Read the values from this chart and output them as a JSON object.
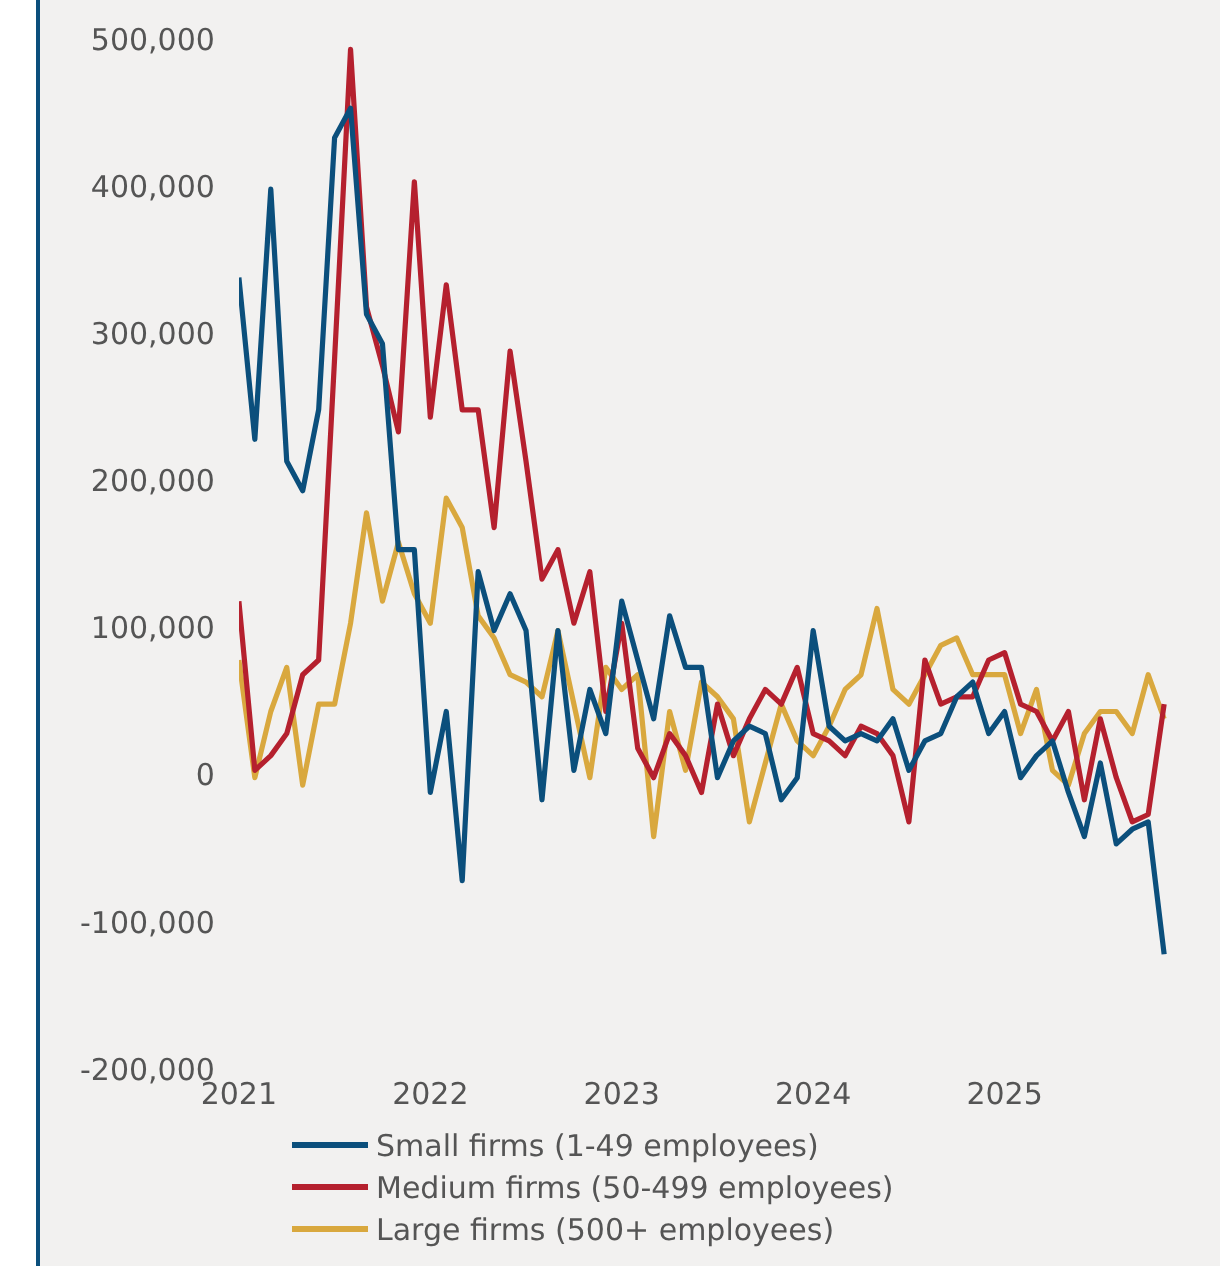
{
  "chart_data": {
    "type": "line",
    "x": [
      "2021-01",
      "2021-02",
      "2021-03",
      "2021-04",
      "2021-05",
      "2021-06",
      "2021-07",
      "2021-08",
      "2021-09",
      "2021-10",
      "2021-11",
      "2021-12",
      "2022-01",
      "2022-02",
      "2022-03",
      "2022-04",
      "2022-05",
      "2022-06",
      "2022-07",
      "2022-08",
      "2022-09",
      "2022-10",
      "2022-11",
      "2022-12",
      "2023-01",
      "2023-02",
      "2023-03",
      "2023-04",
      "2023-05",
      "2023-06",
      "2023-07",
      "2023-08",
      "2023-09",
      "2023-10",
      "2023-11",
      "2023-12",
      "2024-01",
      "2024-02",
      "2024-03",
      "2024-04",
      "2024-05",
      "2024-06",
      "2024-07",
      "2024-08",
      "2024-09",
      "2024-10",
      "2024-11",
      "2024-12",
      "2025-01",
      "2025-02",
      "2025-03",
      "2025-04",
      "2025-05",
      "2025-06",
      "2025-07",
      "2025-08",
      "2025-09",
      "2025-10",
      "2025-11"
    ],
    "series": [
      {
        "name": "Small firms (1-49 employees)",
        "color": "#0b4f7c",
        "values": [
          340000,
          230000,
          400000,
          215000,
          195000,
          250000,
          435000,
          455000,
          315000,
          295000,
          155000,
          155000,
          -10000,
          45000,
          -70000,
          140000,
          100000,
          125000,
          100000,
          -15000,
          100000,
          5000,
          60000,
          30000,
          120000,
          80000,
          40000,
          110000,
          75000,
          75000,
          0,
          25000,
          35000,
          30000,
          -15000,
          0,
          100000,
          35000,
          25000,
          30000,
          25000,
          40000,
          5000,
          25000,
          30000,
          55000,
          65000,
          30000,
          45000,
          0,
          15000,
          25000,
          -10000,
          -40000,
          10000,
          -45000,
          -35000,
          -30000,
          -120000
        ]
      },
      {
        "name": "Medium firms (50-499 employees)",
        "color": "#b5202e",
        "values": [
          120000,
          5000,
          15000,
          30000,
          70000,
          80000,
          285000,
          495000,
          320000,
          280000,
          235000,
          405000,
          245000,
          335000,
          250000,
          250000,
          170000,
          290000,
          215000,
          135000,
          155000,
          105000,
          140000,
          45000,
          105000,
          20000,
          0,
          30000,
          15000,
          -10000,
          50000,
          15000,
          40000,
          60000,
          50000,
          75000,
          30000,
          25000,
          15000,
          35000,
          30000,
          15000,
          -30000,
          80000,
          50000,
          55000,
          55000,
          80000,
          85000,
          50000,
          45000,
          25000,
          45000,
          -15000,
          40000,
          0,
          -30000,
          -25000,
          50000
        ]
      },
      {
        "name": "Large firms (500+ employees)",
        "color": "#d9a83e",
        "values": [
          80000,
          0,
          45000,
          75000,
          -5000,
          50000,
          50000,
          105000,
          180000,
          120000,
          160000,
          125000,
          105000,
          190000,
          170000,
          110000,
          95000,
          70000,
          65000,
          55000,
          100000,
          50000,
          0,
          75000,
          60000,
          70000,
          -40000,
          45000,
          5000,
          65000,
          55000,
          40000,
          -30000,
          10000,
          50000,
          25000,
          15000,
          35000,
          60000,
          70000,
          115000,
          60000,
          50000,
          70000,
          90000,
          95000,
          70000,
          70000,
          70000,
          30000,
          60000,
          5000,
          -5000,
          30000,
          45000,
          45000,
          30000,
          70000,
          40000
        ]
      }
    ],
    "xlim": [
      "2021-01",
      "2026-02"
    ],
    "xticks": [
      "2021",
      "2022",
      "2023",
      "2024",
      "2025"
    ],
    "ylim": [
      -200000,
      500000
    ],
    "yticks": [
      {
        "value": -200000,
        "label": "-200,000"
      },
      {
        "value": -100000,
        "label": "-100,000"
      },
      {
        "value": 0,
        "label": "0"
      },
      {
        "value": 100000,
        "label": "100,000"
      },
      {
        "value": 200000,
        "label": "200,000"
      },
      {
        "value": 300000,
        "label": "300,000"
      },
      {
        "value": 400000,
        "label": "400,000"
      },
      {
        "value": 500000,
        "label": "500,000"
      }
    ],
    "grid": false,
    "legend": "bottom",
    "marker": "none",
    "line_style": "solid"
  }
}
